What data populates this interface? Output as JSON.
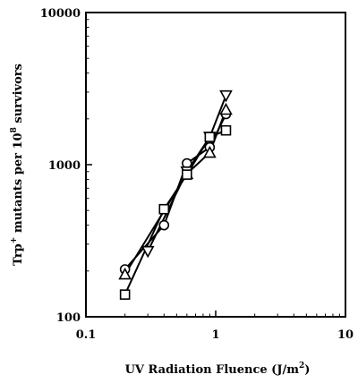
{
  "chart_data": {
    "type": "scatter",
    "title": "",
    "xlabel": "UV Radiation Fluence (J/m",
    "xlabel_sup": "2",
    "xlabel_end": ")",
    "ylabel_prefix": "Trp",
    "ylabel_sup1": "+",
    "ylabel_mid": " mutants per 10",
    "ylabel_sup2": "8",
    "ylabel_end": " survivors",
    "x_scale": "log",
    "y_scale": "log",
    "xlim": [
      0.1,
      10
    ],
    "ylim": [
      100,
      10000
    ],
    "x_ticks": [
      0.1,
      1,
      10
    ],
    "x_tick_labels": [
      "0.1",
      "1",
      "10"
    ],
    "y_ticks": [
      100,
      1000,
      10000
    ],
    "y_tick_labels": [
      "100",
      "1000",
      "10000"
    ],
    "grid": false,
    "legend": "none",
    "series": [
      {
        "marker": "circle",
        "x": [
          0.2,
          0.4,
          0.6,
          0.9,
          1.2
        ],
        "y": [
          205,
          400,
          1020,
          1300,
          2150
        ]
      },
      {
        "marker": "triangle-up",
        "x": [
          0.2,
          0.6,
          0.9,
          1.2
        ],
        "y": [
          190,
          870,
          1200,
          2300
        ]
      },
      {
        "marker": "triangle-down",
        "x": [
          0.3,
          0.6,
          0.9,
          1.2
        ],
        "y": [
          270,
          900,
          1520,
          2850
        ]
      },
      {
        "marker": "square",
        "x": [
          0.2,
          0.4,
          0.6,
          0.9,
          1.2
        ],
        "y": [
          140,
          510,
          860,
          1520,
          1680
        ]
      }
    ]
  }
}
